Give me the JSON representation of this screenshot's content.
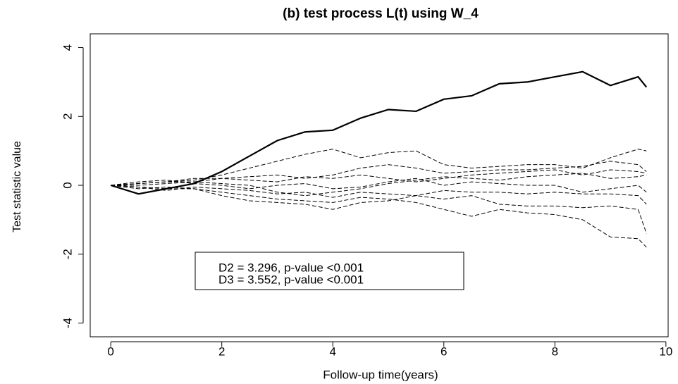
{
  "chart_data": {
    "type": "line",
    "title": "(b) test process L(t) using W_4",
    "x_label": "Follow-up time(years)",
    "y_label": "Test statistic value",
    "x": [
      0,
      0.5,
      1,
      1.5,
      2,
      2.5,
      3,
      3.5,
      4,
      4.5,
      5,
      5.5,
      6,
      6.5,
      7,
      7.5,
      8,
      8.5,
      9,
      9.5,
      9.65
    ],
    "series": [
      {
        "color": "#000000",
        "linestyle": "solid",
        "width": 2.2,
        "values": [
          0,
          -0.25,
          -0.1,
          0.05,
          0.4,
          0.85,
          1.3,
          1.55,
          1.6,
          1.95,
          2.2,
          2.15,
          2.5,
          2.6,
          2.95,
          3.0,
          3.15,
          3.3,
          2.9,
          3.15,
          2.85
        ]
      },
      {
        "color": "#000000",
        "linestyle": "dashed",
        "width": 1,
        "values": [
          0,
          0.05,
          0.1,
          0.15,
          0.3,
          0.5,
          0.7,
          0.9,
          1.05,
          0.8,
          0.95,
          1.0,
          0.6,
          0.5,
          0.55,
          0.6,
          0.6,
          0.5,
          0.8,
          1.05,
          1.0
        ]
      },
      {
        "color": "#000000",
        "linestyle": "dashed",
        "width": 1,
        "values": [
          0,
          -0.1,
          -0.05,
          -0.1,
          -0.2,
          -0.3,
          -0.4,
          -0.45,
          -0.5,
          -0.35,
          -0.4,
          -0.5,
          -0.7,
          -0.9,
          -0.7,
          -0.8,
          -0.85,
          -1.0,
          -1.5,
          -1.55,
          -1.8
        ]
      },
      {
        "color": "#000000",
        "linestyle": "dashed",
        "width": 1,
        "values": [
          0,
          0.05,
          0.1,
          0.2,
          0.2,
          0.25,
          0.3,
          0.2,
          0.3,
          0.5,
          0.6,
          0.5,
          0.35,
          0.4,
          0.45,
          0.45,
          0.5,
          0.55,
          0.7,
          0.6,
          0.4
        ]
      },
      {
        "color": "#000000",
        "linestyle": "dashed",
        "width": 1,
        "values": [
          0,
          -0.05,
          -0.1,
          -0.1,
          -0.3,
          -0.45,
          -0.5,
          -0.55,
          -0.7,
          -0.5,
          -0.45,
          -0.3,
          -0.4,
          -0.3,
          -0.55,
          -0.6,
          -0.6,
          -0.65,
          -0.6,
          -0.7,
          -1.4
        ]
      },
      {
        "color": "#000000",
        "linestyle": "dashed",
        "width": 1,
        "values": [
          0,
          0.1,
          0.15,
          0.05,
          0.0,
          -0.1,
          0.0,
          0.05,
          -0.1,
          -0.05,
          0.1,
          0.2,
          0.0,
          0.1,
          0.05,
          0.0,
          0.0,
          -0.2,
          -0.1,
          0.0,
          -0.2
        ]
      },
      {
        "color": "#000000",
        "linestyle": "dashed",
        "width": 1,
        "values": [
          0,
          0.0,
          0.05,
          0.1,
          0.05,
          0.0,
          -0.2,
          -0.3,
          -0.2,
          -0.1,
          0.05,
          0.15,
          0.25,
          0.2,
          0.15,
          0.25,
          0.3,
          0.35,
          0.2,
          0.25,
          0.3
        ]
      },
      {
        "color": "#000000",
        "linestyle": "dashed",
        "width": 1,
        "values": [
          0,
          -0.05,
          -0.15,
          -0.05,
          -0.1,
          -0.15,
          -0.25,
          -0.2,
          -0.35,
          -0.2,
          -0.25,
          -0.3,
          -0.15,
          -0.2,
          -0.2,
          -0.25,
          -0.2,
          -0.25,
          -0.25,
          -0.3,
          -0.55
        ]
      },
      {
        "color": "#000000",
        "linestyle": "dashed",
        "width": 1,
        "values": [
          0,
          0.05,
          0.1,
          0.1,
          0.2,
          0.15,
          0.1,
          0.25,
          0.2,
          0.3,
          0.2,
          0.1,
          0.2,
          0.3,
          0.35,
          0.4,
          0.45,
          0.3,
          0.45,
          0.4,
          0.35
        ]
      }
    ],
    "annotations": [
      "D2 = 3.296, p-value <0.001",
      "D3 = 3.552, p-value <0.001"
    ],
    "xlim": [
      -0.37,
      10.04
    ],
    "xticks": [
      0,
      2,
      4,
      6,
      8,
      10
    ],
    "ylim": [
      -4.4,
      4.4
    ],
    "yticks": [
      -4,
      -2,
      0,
      2,
      4
    ]
  }
}
